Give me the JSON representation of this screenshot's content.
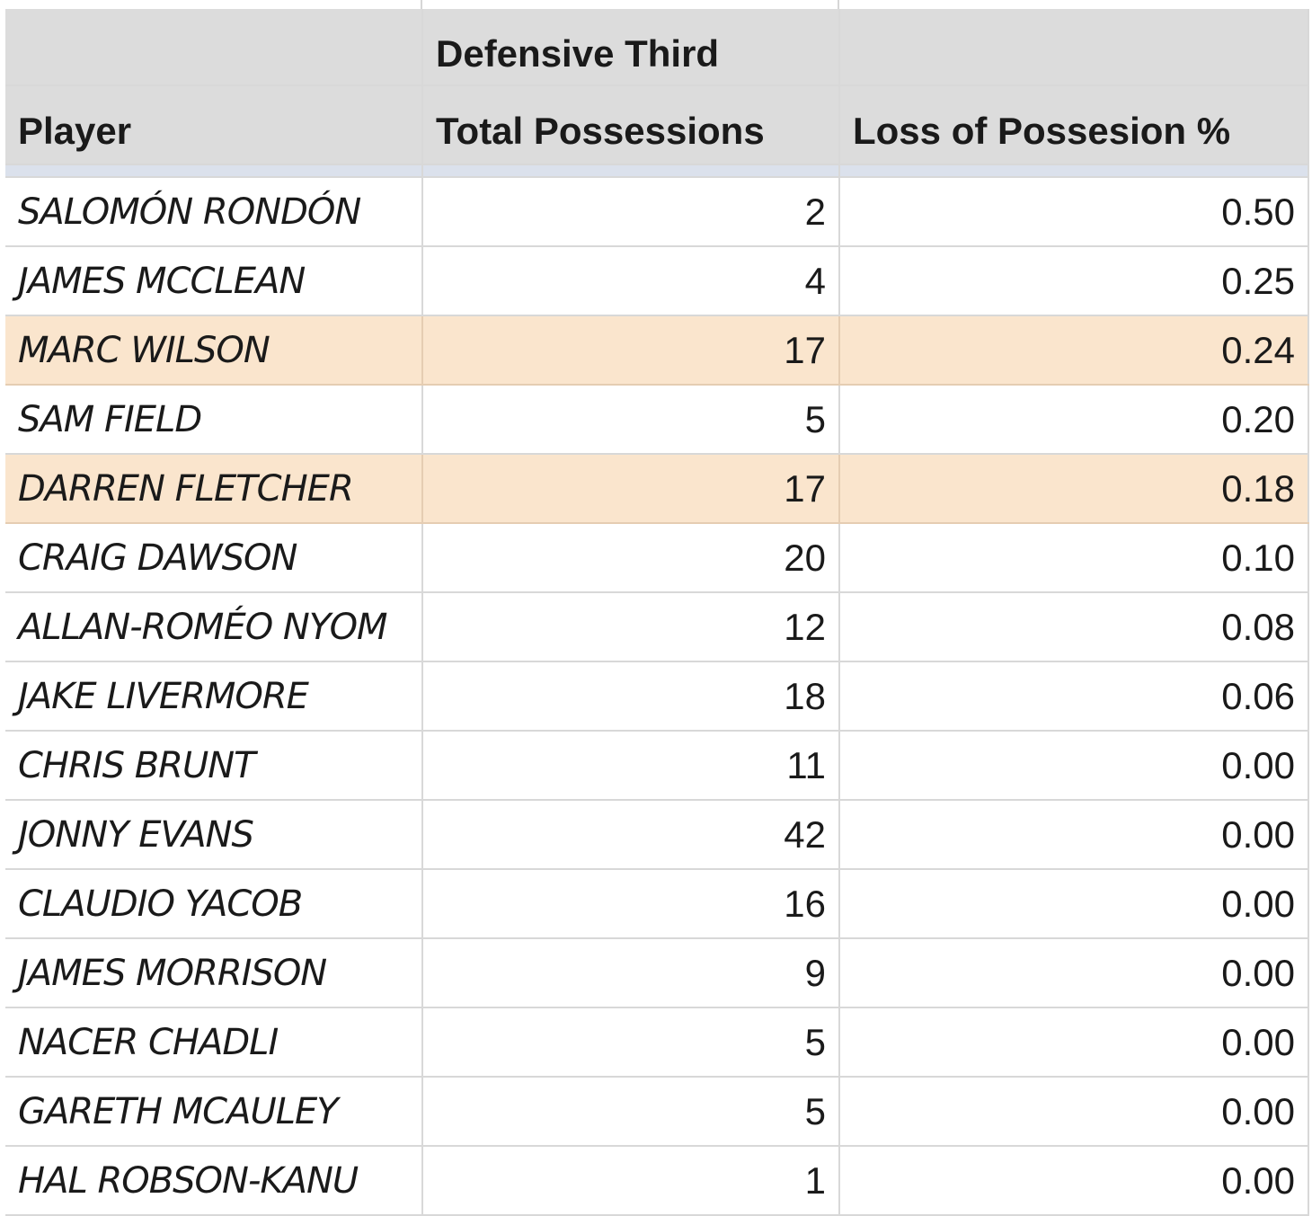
{
  "header": {
    "group_label": "Defensive Third",
    "columns": [
      "Player",
      "Total Possessions",
      "Loss of Possesion %"
    ]
  },
  "rows": [
    {
      "player": "SALOMÓN RONDÓN",
      "total": "2",
      "loss": "0.50",
      "highlight": false
    },
    {
      "player": "JAMES MCCLEAN",
      "total": "4",
      "loss": "0.25",
      "highlight": false
    },
    {
      "player": "MARC WILSON",
      "total": "17",
      "loss": "0.24",
      "highlight": true
    },
    {
      "player": "SAM FIELD",
      "total": "5",
      "loss": "0.20",
      "highlight": false
    },
    {
      "player": "DARREN FLETCHER",
      "total": "17",
      "loss": "0.18",
      "highlight": true
    },
    {
      "player": "CRAIG DAWSON",
      "total": "20",
      "loss": "0.10",
      "highlight": false
    },
    {
      "player": "ALLAN-ROMÉO NYOM",
      "total": "12",
      "loss": "0.08",
      "highlight": false
    },
    {
      "player": "JAKE LIVERMORE",
      "total": "18",
      "loss": "0.06",
      "highlight": false
    },
    {
      "player": "CHRIS BRUNT",
      "total": "11",
      "loss": "0.00",
      "highlight": false
    },
    {
      "player": "JONNY EVANS",
      "total": "42",
      "loss": "0.00",
      "highlight": false
    },
    {
      "player": "CLAUDIO YACOB",
      "total": "16",
      "loss": "0.00",
      "highlight": false
    },
    {
      "player": "JAMES MORRISON",
      "total": "9",
      "loss": "0.00",
      "highlight": false
    },
    {
      "player": "NACER CHADLI",
      "total": "5",
      "loss": "0.00",
      "highlight": false
    },
    {
      "player": "GARETH MCAULEY",
      "total": "5",
      "loss": "0.00",
      "highlight": false
    },
    {
      "player": "HAL ROBSON-KANU",
      "total": "1",
      "loss": "0.00",
      "highlight": false
    }
  ],
  "colors": {
    "header_bg": "#dcdcdc",
    "highlight_bg": "#fae5cd",
    "freeze_bar": "#dbe1ec"
  }
}
